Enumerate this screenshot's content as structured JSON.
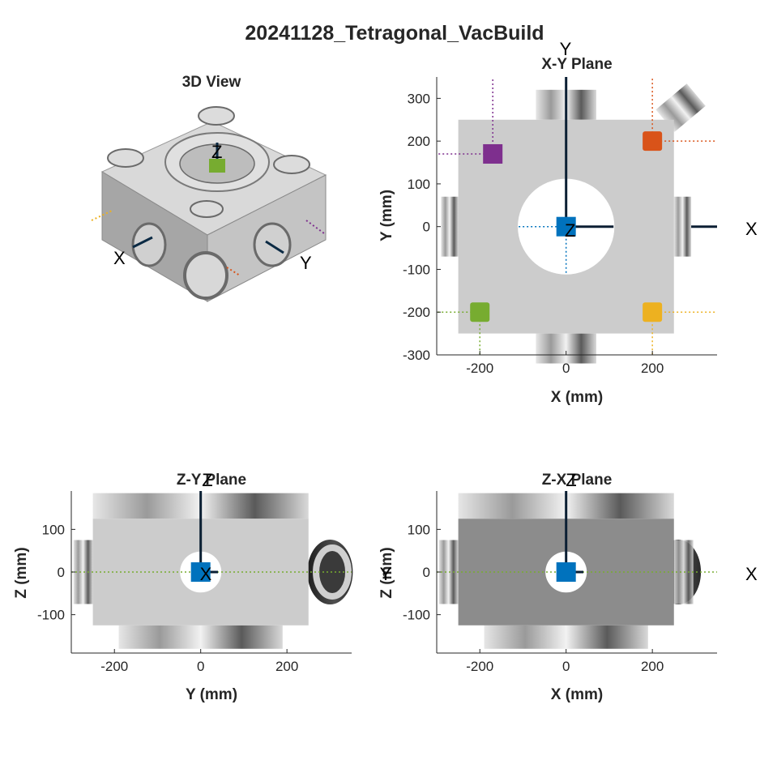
{
  "figure": {
    "title": "20241128_Tetragonal_VacBuild"
  },
  "colors": {
    "blue": "#0072BD",
    "orange": "#D95319",
    "yellow": "#EDB120",
    "purple": "#7E2F8E",
    "green": "#77AC30",
    "body_light": "#cccccc",
    "body_dark": "#8c8c8c"
  },
  "view3d": {
    "title": "3D View",
    "axis_letters": {
      "x": "X",
      "y": "Y",
      "z": "Z"
    }
  },
  "chart_data": [
    {
      "type": "scatter",
      "title": "X-Y Plane",
      "xlabel": "X (mm)",
      "ylabel": "Y (mm)",
      "xlim": [
        -300,
        350
      ],
      "ylim": [
        -300,
        350
      ],
      "xticks": [
        -200,
        0,
        200
      ],
      "yticks": [
        -300,
        -200,
        -100,
        0,
        100,
        200,
        300
      ],
      "axis_letters": {
        "x": "X",
        "y": "Y",
        "z": "Z"
      },
      "chamber_body": {
        "x_range": [
          -250,
          250
        ],
        "y_range": [
          -250,
          250
        ]
      },
      "bore_radius": 112,
      "markers": [
        {
          "x": 0,
          "y": 0,
          "color": "blue"
        },
        {
          "x": -170,
          "y": 170,
          "color": "purple"
        },
        {
          "x": 200,
          "y": 200,
          "color": "orange"
        },
        {
          "x": -200,
          "y": -200,
          "color": "green"
        },
        {
          "x": 200,
          "y": -200,
          "color": "yellow"
        }
      ]
    },
    {
      "type": "scatter",
      "title": "Z-Y Plane",
      "xlabel": "Y (mm)",
      "ylabel": "Z (mm)",
      "xlim": [
        -300,
        350
      ],
      "ylim": [
        -190,
        190
      ],
      "xticks": [
        -200,
        0,
        200
      ],
      "yticks": [
        -100,
        0,
        100
      ],
      "axis_letters": {
        "z": "Z",
        "x": "X"
      },
      "chamber_body": {
        "x_range": [
          -250,
          250
        ],
        "y_range": [
          -125,
          125
        ]
      },
      "bore_radius": 48,
      "markers": [
        {
          "x": 0,
          "y": 0,
          "color": "blue"
        }
      ]
    },
    {
      "type": "scatter",
      "title": "Z-X Plane",
      "xlabel": "X (mm)",
      "ylabel": "Z (mm)",
      "xlim": [
        -300,
        350
      ],
      "ylim": [
        -190,
        190
      ],
      "xticks": [
        -200,
        0,
        200
      ],
      "yticks": [
        -100,
        0,
        100
      ],
      "axis_letters": {
        "z": "Z",
        "x": "X",
        "y": "Y"
      },
      "chamber_body": {
        "x_range": [
          -250,
          250
        ],
        "y_range": [
          -125,
          125
        ]
      },
      "bore_radius": 48,
      "markers": [
        {
          "x": 0,
          "y": 0,
          "color": "blue"
        }
      ]
    }
  ]
}
